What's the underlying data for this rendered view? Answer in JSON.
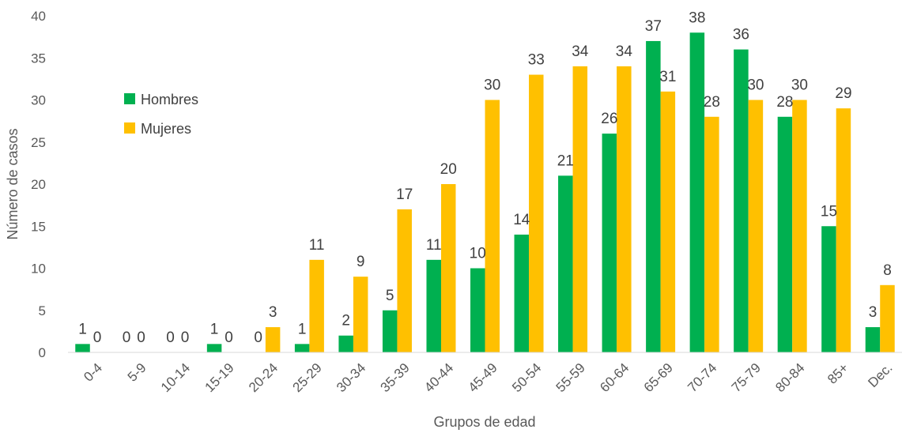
{
  "chart_data": {
    "type": "bar",
    "title": "",
    "xlabel": "Grupos de edad",
    "ylabel": "Número de casos",
    "ylim": [
      0,
      40
    ],
    "yticks": [
      0,
      5,
      10,
      15,
      20,
      25,
      30,
      35,
      40
    ],
    "grid": false,
    "legend_position": "upper-left inside plot",
    "categories": [
      "0-4",
      "5-9",
      "10-14",
      "15-19",
      "20-24",
      "25-29",
      "30-34",
      "35-39",
      "40-44",
      "45-49",
      "50-54",
      "55-59",
      "60-64",
      "65-69",
      "70-74",
      "75-79",
      "80-84",
      "85+",
      "Dec."
    ],
    "series": [
      {
        "name": "Hombres",
        "color": "#00B050",
        "values": [
          1,
          0,
          0,
          1,
          0,
          1,
          2,
          5,
          11,
          10,
          14,
          21,
          26,
          37,
          38,
          36,
          28,
          15,
          3
        ]
      },
      {
        "name": "Mujeres",
        "color": "#FFC000",
        "values": [
          0,
          0,
          0,
          0,
          3,
          11,
          9,
          17,
          20,
          30,
          33,
          34,
          34,
          31,
          28,
          30,
          30,
          29,
          8
        ]
      }
    ]
  }
}
